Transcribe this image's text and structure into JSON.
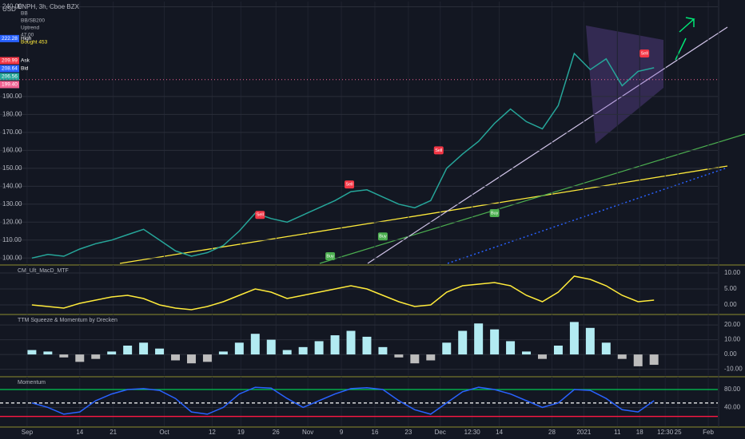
{
  "chart_data": [
    {
      "type": "line",
      "title": "ENPH, 3h, Cboe BZX",
      "unit": "USD",
      "legend": [
        "BB",
        "BB/SB200",
        "Uptrend",
        "47.00",
        "Bought 453"
      ],
      "x": [
        1,
        2,
        3,
        4,
        5,
        6,
        7,
        8,
        9,
        10,
        11,
        12,
        13,
        14,
        15,
        16,
        17,
        18,
        19,
        20,
        21,
        22,
        23,
        24,
        25,
        26,
        27,
        28,
        29,
        30,
        31,
        32,
        33,
        34,
        35,
        36,
        37,
        38,
        39,
        40
      ],
      "xlim": [
        -1,
        44
      ],
      "xticks": [
        {
          "value": 0.7,
          "label": "Sep"
        },
        {
          "value": 4.0,
          "label": "14"
        },
        {
          "value": 6.1,
          "label": "21"
        },
        {
          "value": 9.3,
          "label": "Oct"
        },
        {
          "value": 12.3,
          "label": "12"
        },
        {
          "value": 14.1,
          "label": "19"
        },
        {
          "value": 16.3,
          "label": "26"
        },
        {
          "value": 18.3,
          "label": "Nov"
        },
        {
          "value": 20.4,
          "label": "9"
        },
        {
          "value": 22.5,
          "label": "16"
        },
        {
          "value": 24.6,
          "label": "23"
        },
        {
          "value": 26.6,
          "label": "Dec"
        },
        {
          "value": 28.6,
          "label": "12:30"
        },
        {
          "value": 30.3,
          "label": "14"
        },
        {
          "value": 33.6,
          "label": "28"
        },
        {
          "value": 35.6,
          "label": "2021"
        },
        {
          "value": 37.7,
          "label": "11"
        },
        {
          "value": 39.1,
          "label": "18"
        },
        {
          "value": 40.7,
          "label": "12:30"
        },
        {
          "value": 41.5,
          "label": "25"
        },
        {
          "value": 43.4,
          "label": "Feb"
        }
      ],
      "ylim": [
        97,
        242
      ],
      "yticks": [
        {
          "value": 100,
          "label": "100.00"
        },
        {
          "value": 110,
          "label": "110.00"
        },
        {
          "value": 120,
          "label": "120.00"
        },
        {
          "value": 130,
          "label": "130.00"
        },
        {
          "value": 140,
          "label": "140.00"
        },
        {
          "value": 150,
          "label": "150.00"
        },
        {
          "value": 160,
          "label": "160.00"
        },
        {
          "value": 170,
          "label": "170.00"
        },
        {
          "value": 180,
          "label": "180.00"
        },
        {
          "value": 190,
          "label": "190.00"
        },
        {
          "value": 240,
          "label": "240.00"
        }
      ],
      "grid": true,
      "series": [
        {
          "color": "#26a69a",
          "values": [
            100,
            102,
            101,
            105,
            108,
            110,
            113,
            116,
            110,
            104,
            101,
            103,
            107,
            115,
            125,
            122,
            120,
            124,
            128,
            132,
            137,
            138,
            134,
            130,
            128,
            132,
            150,
            158,
            165,
            175,
            183,
            176,
            172,
            185,
            214,
            205,
            211,
            196,
            204,
            206
          ]
        }
      ],
      "tags": [
        {
          "value": 222.28,
          "label": "222.28",
          "name": "High",
          "color": "#2962ff"
        },
        {
          "value": 209.99,
          "label": "209.99",
          "name": "Ask",
          "color": "#f23645"
        },
        {
          "value": 208.64,
          "label": "208.64",
          "name": "Bid",
          "color": "#2962ff"
        },
        {
          "value": 206.56,
          "label": "206.56",
          "color": "#26a69a"
        },
        {
          "value": 199.4,
          "label": "199.40",
          "color": "#f06292",
          "dotted": true
        }
      ],
      "signals": [
        {
          "text": "Sell",
          "x": 15.3,
          "y": 124,
          "color": "#f23645"
        },
        {
          "text": "Sell",
          "x": 20.9,
          "y": 141,
          "color": "#f23645"
        },
        {
          "text": "Sell",
          "x": 26.5,
          "y": 160,
          "color": "#f23645"
        },
        {
          "text": "Sell",
          "x": 39.4,
          "y": 214,
          "color": "#f23645"
        },
        {
          "text": "Buy",
          "x": 19.7,
          "y": 101,
          "color": "#4caf50"
        },
        {
          "text": "Buy",
          "x": 23.0,
          "y": 112,
          "color": "#4caf50"
        },
        {
          "text": "Buy",
          "x": 30.0,
          "y": 125,
          "color": "#4caf50"
        }
      ]
    },
    {
      "type": "line",
      "title": "CM_Ult_MacD_MTF",
      "x": [
        1,
        2,
        3,
        4,
        5,
        6,
        7,
        8,
        9,
        10,
        11,
        12,
        13,
        14,
        15,
        16,
        17,
        18,
        19,
        20,
        21,
        22,
        23,
        24,
        25,
        26,
        27,
        28,
        29,
        30,
        31,
        32,
        33,
        34,
        35,
        36,
        37,
        38,
        39,
        40
      ],
      "xlim": [
        -1,
        44
      ],
      "ylim": [
        -2.5,
        12
      ],
      "yticks": [
        {
          "value": 10,
          "label": "10.00"
        },
        {
          "value": 5,
          "label": "5.00"
        },
        {
          "value": 0,
          "label": "0.00"
        }
      ],
      "series": [
        {
          "color": "#ffeb3b",
          "values": [
            0,
            -0.5,
            -1,
            0.5,
            1.5,
            2.5,
            3,
            2,
            0,
            -1,
            -1.5,
            -0.5,
            1,
            3,
            5,
            4,
            2,
            3,
            4,
            5,
            6,
            5,
            3,
            1,
            -0.5,
            0,
            4,
            6,
            6.5,
            7,
            6,
            3,
            1,
            4,
            9,
            8,
            6,
            3,
            1,
            1.5
          ]
        }
      ]
    },
    {
      "type": "bar",
      "title": "TTM Squeeze & Momentum by Drecken",
      "x": [
        1,
        2,
        3,
        4,
        5,
        6,
        7,
        8,
        9,
        10,
        11,
        12,
        13,
        14,
        15,
        16,
        17,
        18,
        19,
        20,
        21,
        22,
        23,
        24,
        25,
        26,
        27,
        28,
        29,
        30,
        31,
        32,
        33,
        34,
        35,
        36,
        37,
        38,
        39,
        40
      ],
      "xlim": [
        -1,
        44
      ],
      "ylim": [
        -14,
        26
      ],
      "yticks": [
        {
          "value": 20,
          "label": "20.00"
        },
        {
          "value": 10,
          "label": "10.00"
        },
        {
          "value": 0,
          "label": "0.00"
        },
        {
          "value": -10,
          "label": "-10.00"
        }
      ],
      "colors": {
        "up": "#b2ebf2",
        "down": "#bdbdbd"
      },
      "values": [
        3,
        2,
        -2,
        -5,
        -3,
        2,
        6,
        8,
        4,
        -4,
        -6,
        -5,
        2,
        8,
        14,
        10,
        3,
        5,
        9,
        13,
        16,
        12,
        5,
        -2,
        -6,
        -4,
        8,
        16,
        21,
        17,
        9,
        2,
        -3,
        6,
        22,
        18,
        8,
        -3,
        -8,
        -7
      ]
    },
    {
      "type": "line",
      "title": "Momentum",
      "x": [
        1,
        2,
        3,
        4,
        5,
        6,
        7,
        8,
        9,
        10,
        11,
        12,
        13,
        14,
        15,
        16,
        17,
        18,
        19,
        20,
        21,
        22,
        23,
        24,
        25,
        26,
        27,
        28,
        29,
        30,
        31,
        32,
        33,
        34,
        35,
        36,
        37,
        38,
        39,
        40
      ],
      "xlim": [
        -1,
        44
      ],
      "ylim": [
        -2,
        105
      ],
      "yticks": [
        {
          "value": 80,
          "label": "80.00"
        },
        {
          "value": 40,
          "label": "40.00"
        }
      ],
      "reference_lines": [
        {
          "value": 80,
          "color": "#00c853"
        },
        {
          "value": 50,
          "color": "#ffffff",
          "dashed": true
        },
        {
          "value": 20,
          "color": "#ff1744"
        }
      ],
      "series": [
        {
          "color": "#2962ff",
          "values": [
            50,
            40,
            25,
            30,
            55,
            70,
            80,
            82,
            78,
            60,
            30,
            25,
            40,
            70,
            85,
            83,
            60,
            40,
            55,
            70,
            82,
            84,
            80,
            55,
            35,
            25,
            50,
            75,
            85,
            80,
            70,
            55,
            40,
            50,
            80,
            78,
            60,
            35,
            30,
            55
          ]
        }
      ]
    }
  ]
}
